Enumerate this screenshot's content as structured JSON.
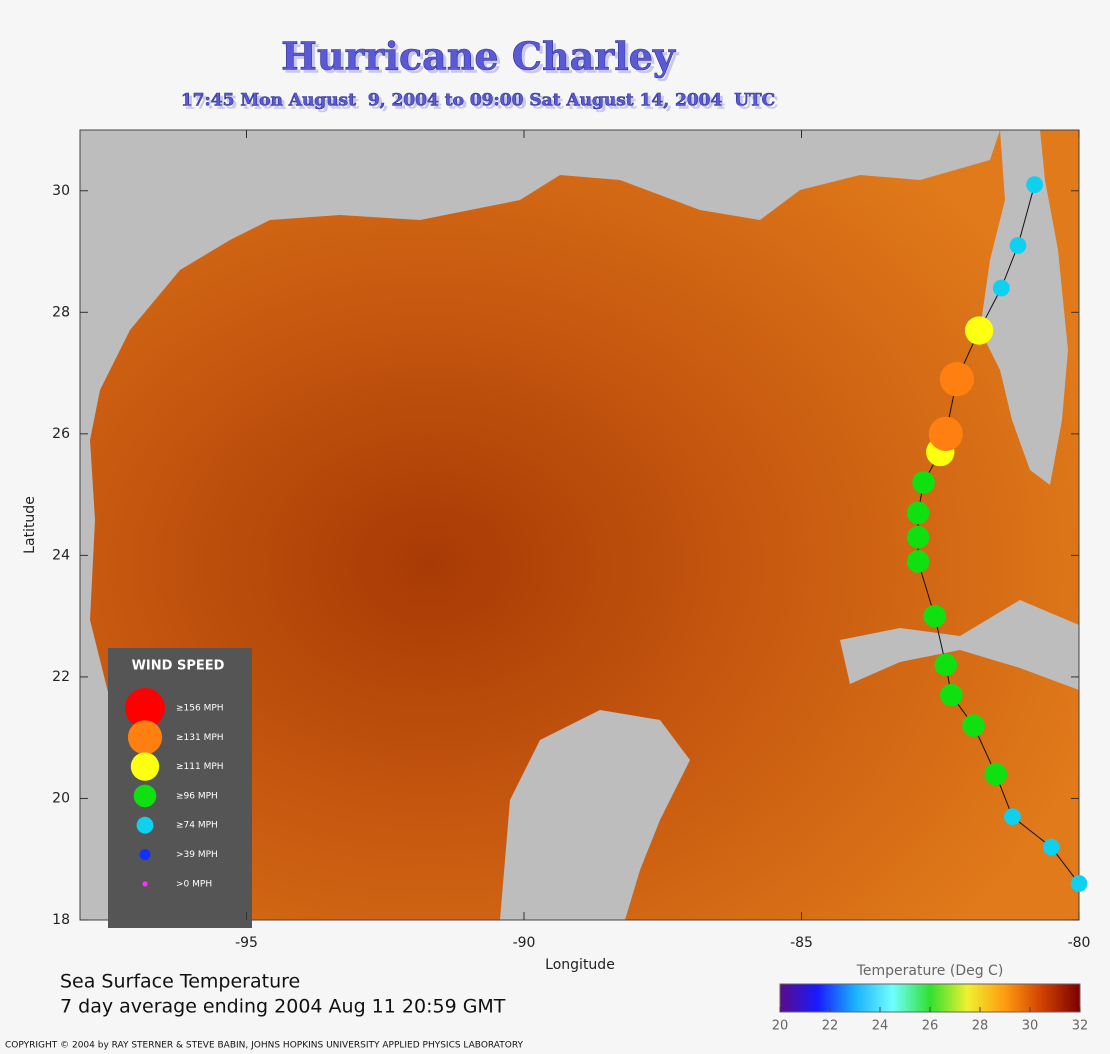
{
  "chart_data": {
    "type": "scatter",
    "title": "Hurricane Charley",
    "subtitle": "17:45 Mon August  9, 2004 to 09:00 Sat August 14, 2004  UTC",
    "x_label": "Longitude",
    "y_label": "Latitude",
    "xlim": [
      -98,
      -80
    ],
    "ylim": [
      18,
      31
    ],
    "xticks": [
      -95,
      -90,
      -85,
      -80
    ],
    "yticks": [
      18,
      20,
      22,
      24,
      26,
      28,
      30
    ],
    "legend_title": "WIND SPEED",
    "wind_classes": [
      {
        "label": "≥156 MPH",
        "color": "#ff0000"
      },
      {
        "label": "≥131 MPH",
        "color": "#ff7f10"
      },
      {
        "label": "≥111 MPH",
        "color": "#ffff10"
      },
      {
        "label": "≥96 MPH",
        "color": "#10e010"
      },
      {
        "label": "≥74 MPH",
        "color": "#10d0f0"
      },
      {
        "label": ">39 MPH",
        "color": "#1030ff"
      },
      {
        "label": ">0 MPH",
        "color": "#ff30ff"
      }
    ],
    "track": {
      "x": [
        -80.0,
        -80.5,
        -81.2,
        -81.5,
        -81.9,
        -82.3,
        -82.4,
        -82.6,
        -82.9,
        -82.9,
        -82.9,
        -82.8,
        -82.5,
        -82.4,
        -82.2,
        -81.8,
        -81.4,
        -81.1,
        -80.8
      ],
      "y": [
        18.6,
        19.2,
        19.7,
        20.4,
        21.2,
        21.7,
        22.2,
        23.0,
        23.9,
        24.3,
        24.7,
        25.2,
        25.7,
        26.0,
        26.9,
        27.7,
        28.4,
        29.1,
        30.1
      ],
      "wind_class": [
        4,
        4,
        4,
        3,
        3,
        3,
        3,
        3,
        3,
        3,
        3,
        3,
        2,
        1,
        1,
        2,
        4,
        4,
        4
      ]
    },
    "colorbar": {
      "label": "Temperature (Deg C)",
      "lim": [
        20,
        32
      ],
      "ticks": [
        20,
        22,
        24,
        26,
        28,
        30,
        32
      ],
      "colors": [
        "#5a0a8a",
        "#1a1aff",
        "#1ab0ff",
        "#70ffff",
        "#30e030",
        "#f0f030",
        "#ff9a10",
        "#d04000",
        "#7a0000"
      ]
    },
    "footer_lines": [
      "Sea Surface Temperature",
      "7 day average ending 2004 Aug 11 20:59 GMT"
    ],
    "copyright": "COPYRIGHT © 2004 by RAY STERNER & STEVE BABIN, JOHNS HOPKINS UNIVERSITY APPLIED PHYSICS LABORATORY"
  }
}
